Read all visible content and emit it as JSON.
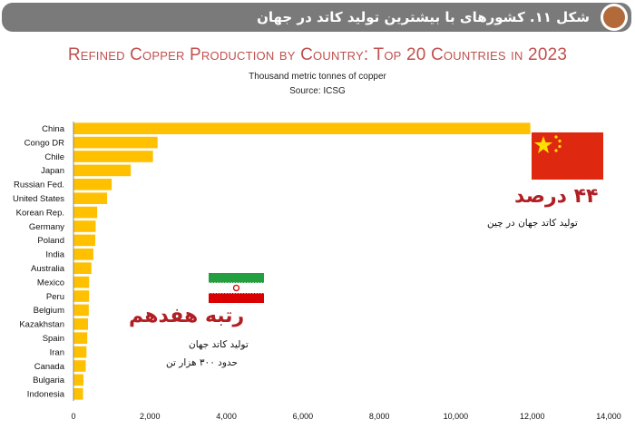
{
  "header": {
    "title": "شکل ۱۱. کشورهای با بیشترین تولید کاتد در جهان"
  },
  "annotations": {
    "china_share": "۴۴ درصد",
    "china_note": "تولید کاتد جهان در چین",
    "iran_rank": "رتبه هفدهم",
    "iran_note1": "تولید کاتد جهان",
    "iran_note2": "حدود ۳۰۰ هزار تن"
  },
  "colors": {
    "bar": "#FFC000",
    "title": "#C0504D",
    "accent_red": "#B01F24",
    "header_bg": "#7A7A7A"
  },
  "chart_data": {
    "type": "bar",
    "orientation": "horizontal",
    "title": "Refined Copper Production by Country: Top 20 Countries in 2023",
    "subtitle": "Thousand metric tonnes of copper",
    "source": "Source: ICSG",
    "categories": [
      "China",
      "Congo DR",
      "Chile",
      "Japan",
      "Russian Fed.",
      "United States",
      "Korean Rep.",
      "Germany",
      "Poland",
      "India",
      "Australia",
      "Mexico",
      "Peru",
      "Belgium",
      "Kazakhstan",
      "Spain",
      "Iran",
      "Canada",
      "Bulgaria",
      "Indonesia"
    ],
    "values": [
      11950,
      2200,
      2080,
      1500,
      1000,
      880,
      620,
      580,
      570,
      520,
      470,
      410,
      410,
      400,
      380,
      360,
      340,
      320,
      260,
      250
    ],
    "xlim": [
      0,
      14000
    ],
    "xticks": [
      0,
      2000,
      4000,
      6000,
      8000,
      10000,
      12000,
      14000
    ],
    "xtick_labels": [
      "0",
      "2,000",
      "4,000",
      "6,000",
      "8,000",
      "10,000",
      "12,000",
      "14,000"
    ],
    "grid": false,
    "legend": "none"
  }
}
